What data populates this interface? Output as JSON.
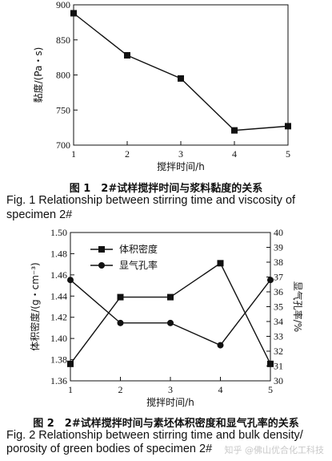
{
  "chart_data": [
    {
      "type": "line",
      "xlabel": "搅拌时间/h",
      "ylabel": "黏度/(Pa・s)",
      "x": [
        1,
        2,
        3,
        4,
        5
      ],
      "xticks": [
        "1",
        "2",
        "3",
        "4",
        "5"
      ],
      "yticks": [
        "700",
        "750",
        "800",
        "850",
        "900"
      ],
      "xlim": [
        1,
        5
      ],
      "ylim": [
        700,
        900
      ],
      "series": [
        {
          "values": [
            888,
            828,
            795,
            721,
            727
          ],
          "marker": "square"
        }
      ],
      "grid": false
    },
    {
      "type": "line",
      "xlabel": "搅拌时间/h",
      "ylabel": "体积密度/(g・cm⁻³)",
      "ylabel_right": "显气孔率/%",
      "x": [
        1,
        2,
        3,
        4,
        5
      ],
      "xticks": [
        "1",
        "2",
        "3",
        "4",
        "5"
      ],
      "yticks_left": [
        "1.36",
        "1.38",
        "1.40",
        "1.42",
        "1.44",
        "1.46",
        "1.48",
        "1.50"
      ],
      "yticks_right": [
        "30",
        "31",
        "32",
        "33",
        "34",
        "35",
        "36",
        "37",
        "38",
        "39",
        "40"
      ],
      "xlim": [
        1,
        5
      ],
      "ylim_left": [
        1.36,
        1.5
      ],
      "ylim_right": [
        30,
        40
      ],
      "legend_position": "top-left",
      "series": [
        {
          "name": "体积密度",
          "axis": "left",
          "marker": "square",
          "values": [
            1.376,
            1.439,
            1.439,
            1.471,
            1.376
          ]
        },
        {
          "name": "显气孔率",
          "axis": "right",
          "marker": "circle",
          "values": [
            36.8,
            33.9,
            33.9,
            32.4,
            36.8
          ]
        }
      ],
      "grid": false
    }
  ],
  "captions": {
    "fig1_zh": "图 1　2#试样搅拌时间与浆料黏度的关系",
    "fig1_en_1": "Fig. 1  Relationship  between  stirring  time  and  viscosity  of",
    "fig1_en_2": "specimen 2#",
    "fig2_zh": "图 2　2#试样搅拌时间与素坯体积密度和显气孔率的关系",
    "fig2_en_1": "Fig. 2  Relationship  between  stirring  time  and  bulk  density/",
    "fig2_en_2": "porosity of green bodies of specimen 2#"
  },
  "watermark": "知乎 @佛山优合化工科技"
}
